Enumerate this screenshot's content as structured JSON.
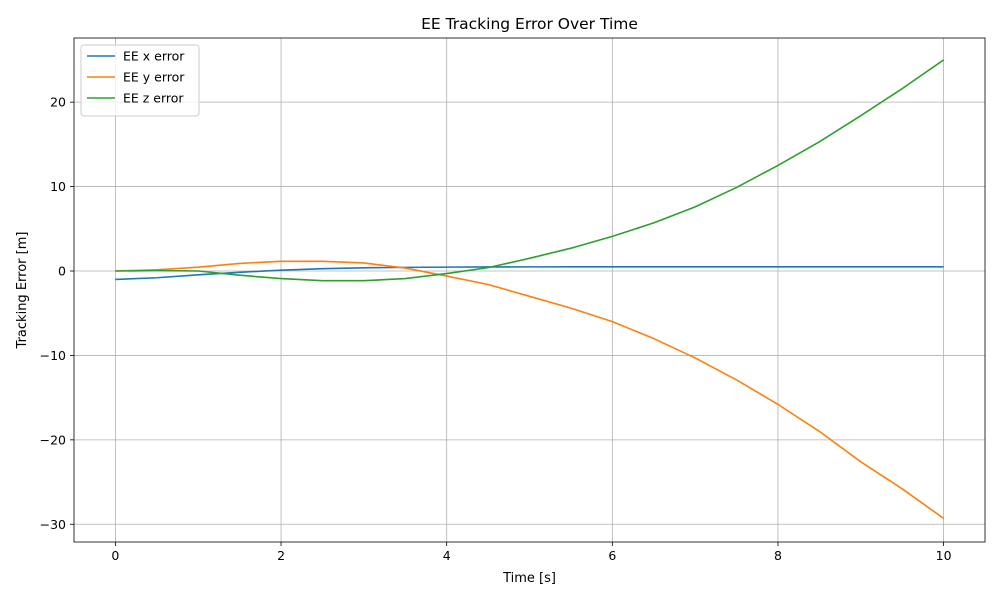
{
  "chart_data": {
    "type": "line",
    "title": "EE Tracking Error Over Time",
    "xlabel": "Time [s]",
    "ylabel": "Tracking Error [m]",
    "xlim": [
      -0.5,
      10.5
    ],
    "ylim": [
      -32.1,
      27.6
    ],
    "xticks": [
      0,
      2,
      4,
      6,
      8,
      10
    ],
    "xtick_labels": [
      "0",
      "2",
      "4",
      "6",
      "8",
      "10"
    ],
    "yticks": [
      -30,
      -20,
      -10,
      0,
      10,
      20
    ],
    "ytick_labels": [
      "−30",
      "−20",
      "−10",
      "0",
      "10",
      "20"
    ],
    "grid": true,
    "legend_position": "top-left",
    "x": [
      0,
      0.5,
      1,
      1.5,
      2,
      2.5,
      3,
      3.5,
      4,
      4.5,
      5,
      5.5,
      6,
      6.5,
      7,
      7.5,
      8,
      8.5,
      9,
      9.5,
      10
    ],
    "series": [
      {
        "name": "EE x error",
        "color": "#1f77b4",
        "values": [
          -1.0,
          -0.8,
          -0.45,
          -0.15,
          0.1,
          0.28,
          0.38,
          0.43,
          0.46,
          0.48,
          0.49,
          0.5,
          0.5,
          0.5,
          0.5,
          0.5,
          0.5,
          0.5,
          0.5,
          0.5,
          0.5
        ]
      },
      {
        "name": "EE y error",
        "color": "#ff7f0e",
        "values": [
          0.0,
          0.15,
          0.45,
          0.9,
          1.15,
          1.15,
          0.95,
          0.35,
          -0.6,
          -1.6,
          -3.0,
          -4.4,
          -6.0,
          -8.0,
          -10.3,
          -12.9,
          -15.8,
          -19.0,
          -22.6,
          -25.8,
          -29.3
        ]
      },
      {
        "name": "EE z error",
        "color": "#2ca02c",
        "values": [
          0.0,
          0.05,
          0.0,
          -0.5,
          -0.9,
          -1.15,
          -1.15,
          -0.9,
          -0.3,
          0.4,
          1.5,
          2.7,
          4.1,
          5.7,
          7.6,
          9.9,
          12.5,
          15.3,
          18.4,
          21.6,
          25.0
        ]
      }
    ]
  }
}
